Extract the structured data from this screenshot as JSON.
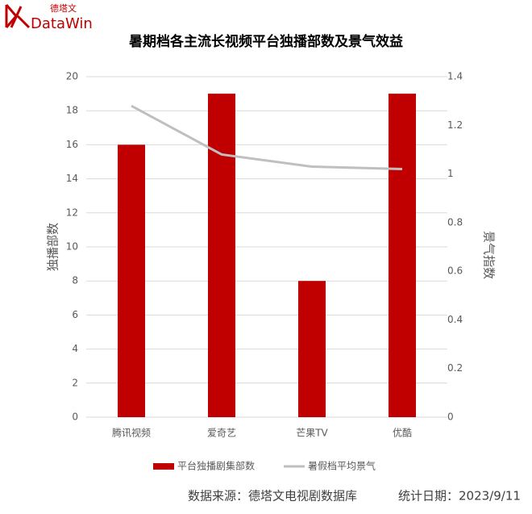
{
  "logo": {
    "name": "德塔文",
    "brand": "DataWin"
  },
  "chart_data": {
    "type": "bar",
    "title": "暑期档各主流长视频平台独播部数及景气效益",
    "y_label": "独播部数",
    "y2_label": "景气指数",
    "categories": [
      "腾讯视频",
      "爱奇艺",
      "芒果TV",
      "优酷"
    ],
    "series": [
      {
        "name": "平台独播剧集部数",
        "color": "#c00000",
        "type": "bar",
        "values": [
          16,
          19,
          8,
          19
        ]
      },
      {
        "name": "暑假档平均景气",
        "color": "#bfbfbf",
        "type": "line",
        "axis": "y2",
        "values": [
          1.28,
          1.08,
          1.03,
          1.02
        ]
      }
    ],
    "ylim": [
      0,
      20
    ],
    "yticks": [
      0,
      2,
      4,
      6,
      8,
      10,
      12,
      14,
      16,
      18,
      20
    ],
    "y2lim": [
      0,
      1.4
    ],
    "y2ticks": [
      0,
      0.2,
      0.4,
      0.6,
      0.8,
      1,
      1.2,
      1.4
    ],
    "grid": true,
    "legend": "bottom"
  },
  "footer": {
    "source": "数据来源：德塔文电视剧数据库",
    "date": "统计日期：2023/9/11"
  }
}
